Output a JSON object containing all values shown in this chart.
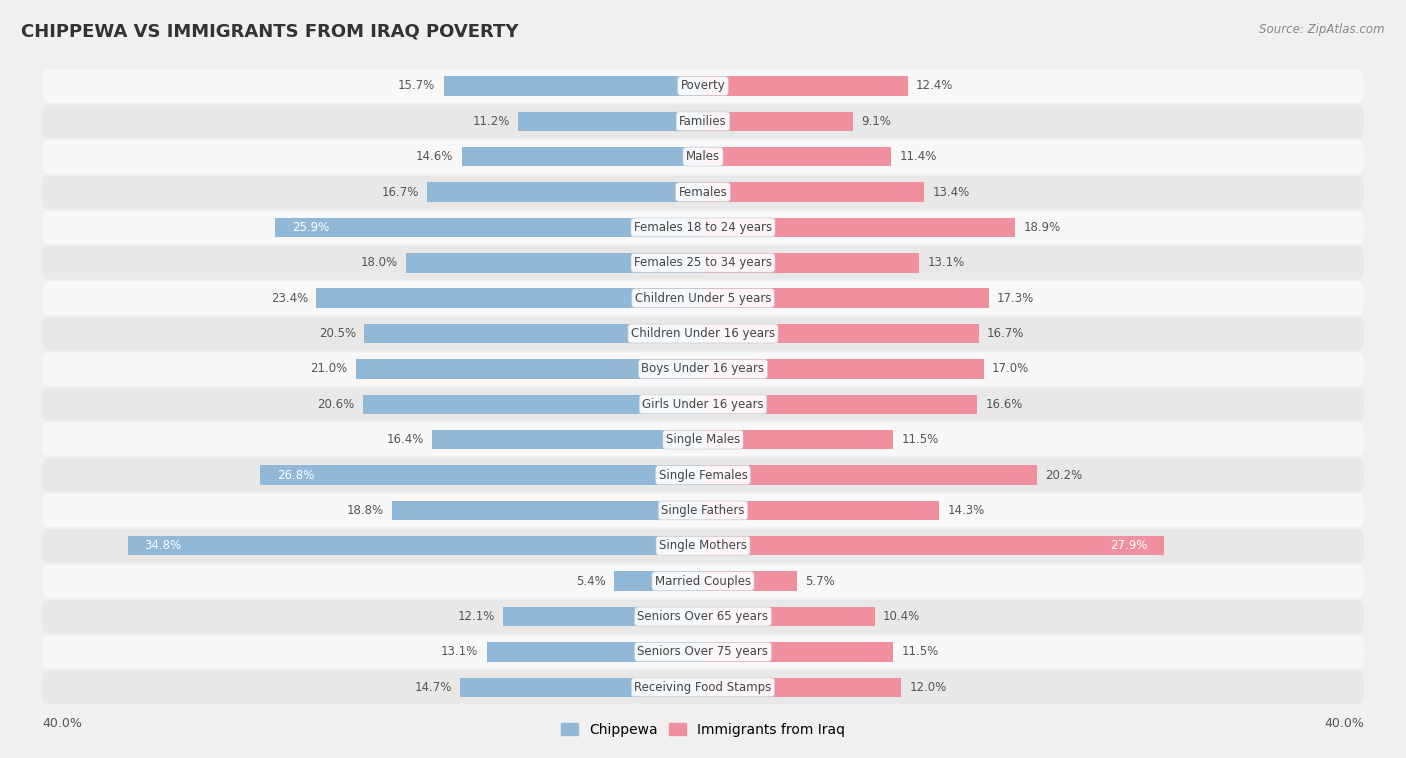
{
  "title": "CHIPPEWA VS IMMIGRANTS FROM IRAQ POVERTY",
  "source": "Source: ZipAtlas.com",
  "categories": [
    "Poverty",
    "Families",
    "Males",
    "Females",
    "Females 18 to 24 years",
    "Females 25 to 34 years",
    "Children Under 5 years",
    "Children Under 16 years",
    "Boys Under 16 years",
    "Girls Under 16 years",
    "Single Males",
    "Single Females",
    "Single Fathers",
    "Single Mothers",
    "Married Couples",
    "Seniors Over 65 years",
    "Seniors Over 75 years",
    "Receiving Food Stamps"
  ],
  "chippewa": [
    15.7,
    11.2,
    14.6,
    16.7,
    25.9,
    18.0,
    23.4,
    20.5,
    21.0,
    20.6,
    16.4,
    26.8,
    18.8,
    34.8,
    5.4,
    12.1,
    13.1,
    14.7
  ],
  "iraq": [
    12.4,
    9.1,
    11.4,
    13.4,
    18.9,
    13.1,
    17.3,
    16.7,
    17.0,
    16.6,
    11.5,
    20.2,
    14.3,
    27.9,
    5.7,
    10.4,
    11.5,
    12.0
  ],
  "chippewa_color": "#92b8d8",
  "iraq_color": "#f0909e",
  "axis_limit": 40.0,
  "bar_height": 0.55,
  "highlight_chippewa": [
    4,
    11,
    13
  ],
  "highlight_iraq": [
    13
  ],
  "bg_color": "#f0f0f0",
  "row_light": "#f8f8f8",
  "row_dark": "#e8e8e8"
}
